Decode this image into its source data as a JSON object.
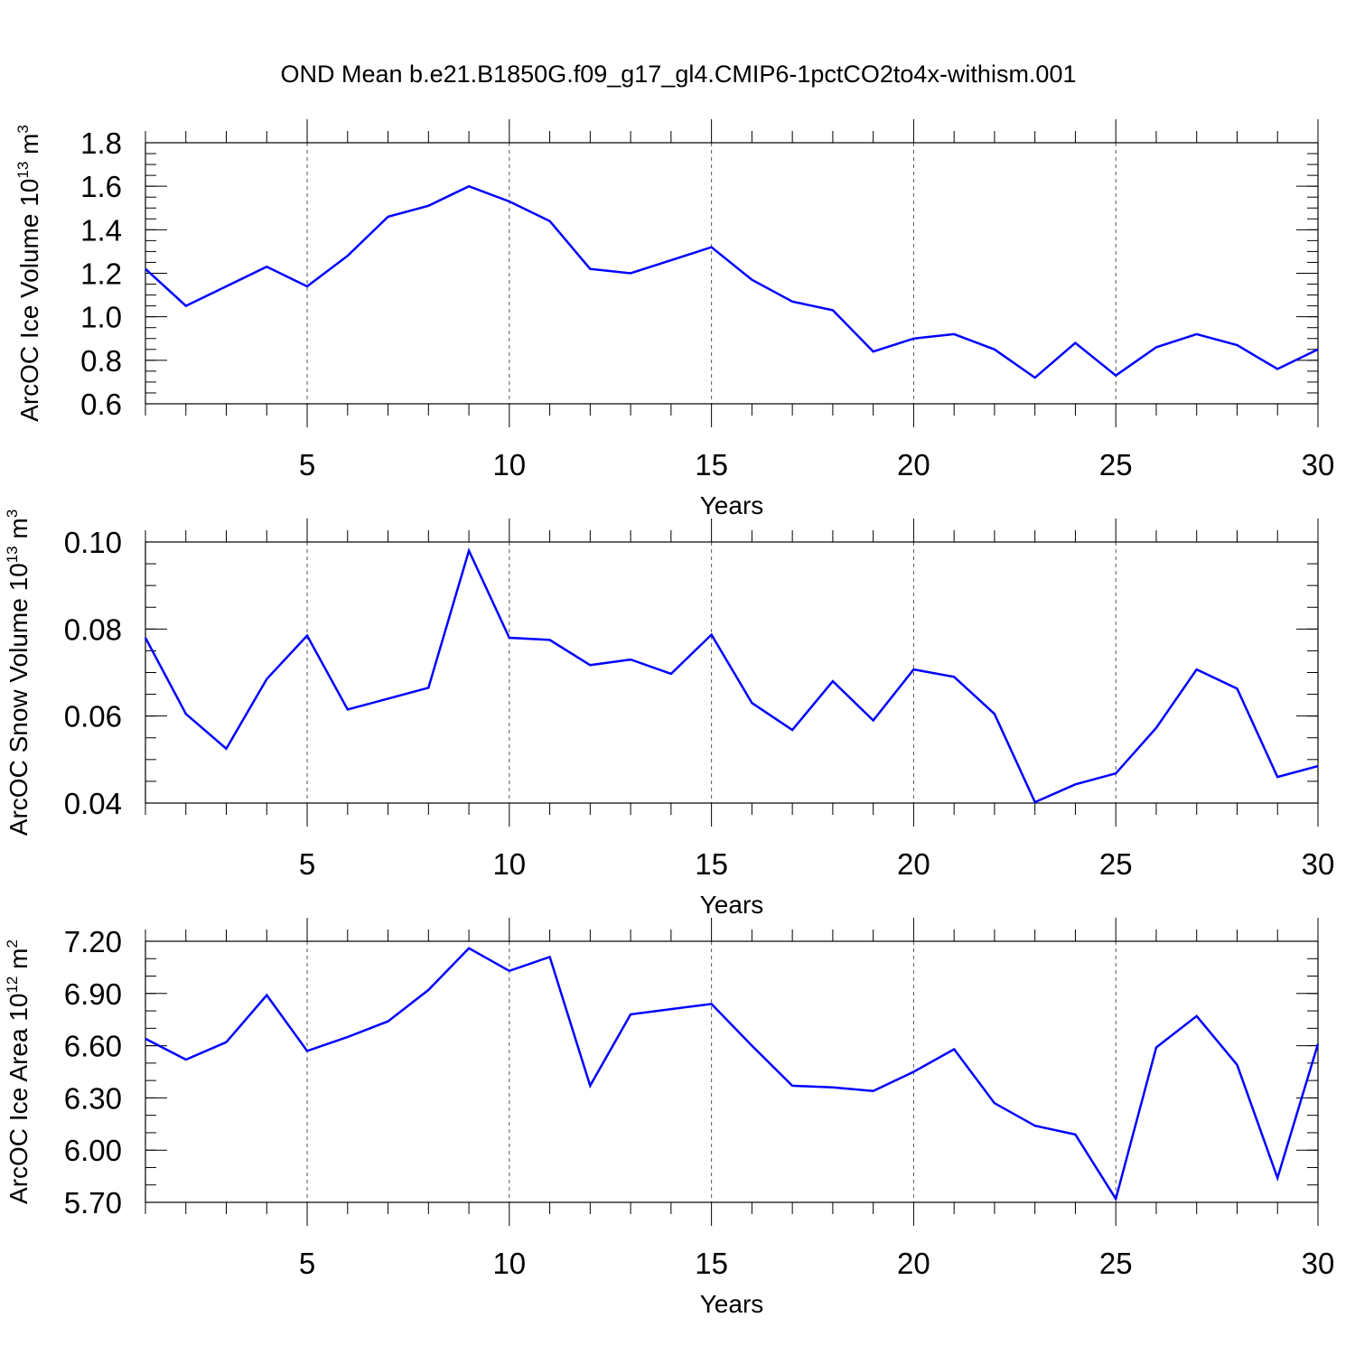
{
  "figure": {
    "title": "OND Mean b.e21.B1850G.f09_g17_gl4.CMIP6-1pctCO2to4x-withism.001",
    "line_color": "#0000ff"
  },
  "chart_data": [
    {
      "type": "line",
      "ylabel": "ArcOC Ice Volume 10",
      "ylabel_exponent": "13",
      "ylabel_unit": " m",
      "ylabel_unit_exponent": "3",
      "xlabel": "Years",
      "xlim": [
        1,
        30
      ],
      "ylim": [
        0.6,
        1.8
      ],
      "x_ticks": [
        5,
        10,
        15,
        20,
        25,
        30
      ],
      "y_ticks": [
        "0.6",
        "0.8",
        "1.0",
        "1.2",
        "1.4",
        "1.6",
        "1.8"
      ],
      "y_tick_values": [
        0.6,
        0.8,
        1.0,
        1.2,
        1.4,
        1.6,
        1.8
      ],
      "y_minor_step": 0.05,
      "grid": "dashed vertical at major x ticks",
      "x": [
        1,
        2,
        3,
        4,
        5,
        6,
        7,
        8,
        9,
        10,
        11,
        12,
        13,
        14,
        15,
        16,
        17,
        18,
        19,
        20,
        21,
        22,
        23,
        24,
        25,
        26,
        27,
        28,
        29,
        30
      ],
      "values": [
        1.22,
        1.05,
        1.14,
        1.23,
        1.14,
        1.28,
        1.46,
        1.51,
        1.6,
        1.53,
        1.44,
        1.22,
        1.2,
        1.26,
        1.32,
        1.17,
        1.07,
        1.03,
        0.84,
        0.9,
        0.92,
        0.85,
        0.72,
        0.88,
        0.73,
        0.86,
        0.92,
        0.87,
        0.76,
        0.85
      ]
    },
    {
      "type": "line",
      "ylabel": "ArcOC Snow Volume 10",
      "ylabel_exponent": "13",
      "ylabel_unit": " m",
      "ylabel_unit_exponent": "3",
      "xlabel": "Years",
      "xlim": [
        1,
        30
      ],
      "ylim": [
        0.04,
        0.1
      ],
      "x_ticks": [
        5,
        10,
        15,
        20,
        25,
        30
      ],
      "y_ticks": [
        "0.04",
        "0.06",
        "0.08",
        "0.10"
      ],
      "y_tick_values": [
        0.04,
        0.06,
        0.08,
        0.1
      ],
      "y_minor_step": 0.005,
      "grid": "dashed vertical at major x ticks",
      "x": [
        1,
        2,
        3,
        4,
        5,
        6,
        7,
        8,
        9,
        10,
        11,
        12,
        13,
        14,
        15,
        16,
        17,
        18,
        19,
        20,
        21,
        22,
        23,
        24,
        25,
        26,
        27,
        28,
        29,
        30
      ],
      "values": [
        0.078,
        0.0605,
        0.0525,
        0.0685,
        0.0785,
        0.0615,
        0.064,
        0.0665,
        0.098,
        0.078,
        0.0775,
        0.0717,
        0.073,
        0.0697,
        0.0787,
        0.063,
        0.0568,
        0.068,
        0.059,
        0.0707,
        0.069,
        0.0605,
        0.0402,
        0.0443,
        0.0468,
        0.0573,
        0.0707,
        0.0663,
        0.046,
        0.0485
      ]
    },
    {
      "type": "line",
      "ylabel": "ArcOC Ice Area 10",
      "ylabel_exponent": "12",
      "ylabel_unit": " m",
      "ylabel_unit_exponent": "2",
      "xlabel": "Years",
      "xlim": [
        1,
        30
      ],
      "ylim": [
        5.7,
        7.2
      ],
      "x_ticks": [
        5,
        10,
        15,
        20,
        25,
        30
      ],
      "y_ticks": [
        "5.70",
        "6.00",
        "6.30",
        "6.60",
        "6.90",
        "7.20"
      ],
      "y_tick_values": [
        5.7,
        6.0,
        6.3,
        6.6,
        6.9,
        7.2
      ],
      "y_minor_step": 0.1,
      "grid": "dashed vertical at major x ticks",
      "x": [
        1,
        2,
        3,
        4,
        5,
        6,
        7,
        8,
        9,
        10,
        11,
        12,
        13,
        14,
        15,
        16,
        17,
        18,
        19,
        20,
        21,
        22,
        23,
        24,
        25,
        26,
        27,
        28,
        29,
        30
      ],
      "values": [
        6.64,
        6.52,
        6.62,
        6.89,
        6.57,
        6.65,
        6.74,
        6.92,
        7.16,
        7.03,
        7.11,
        6.37,
        6.78,
        6.81,
        6.84,
        6.6,
        6.37,
        6.36,
        6.34,
        6.45,
        6.58,
        6.27,
        6.14,
        6.09,
        5.72,
        6.59,
        6.77,
        6.49,
        5.84,
        6.61
      ]
    }
  ]
}
